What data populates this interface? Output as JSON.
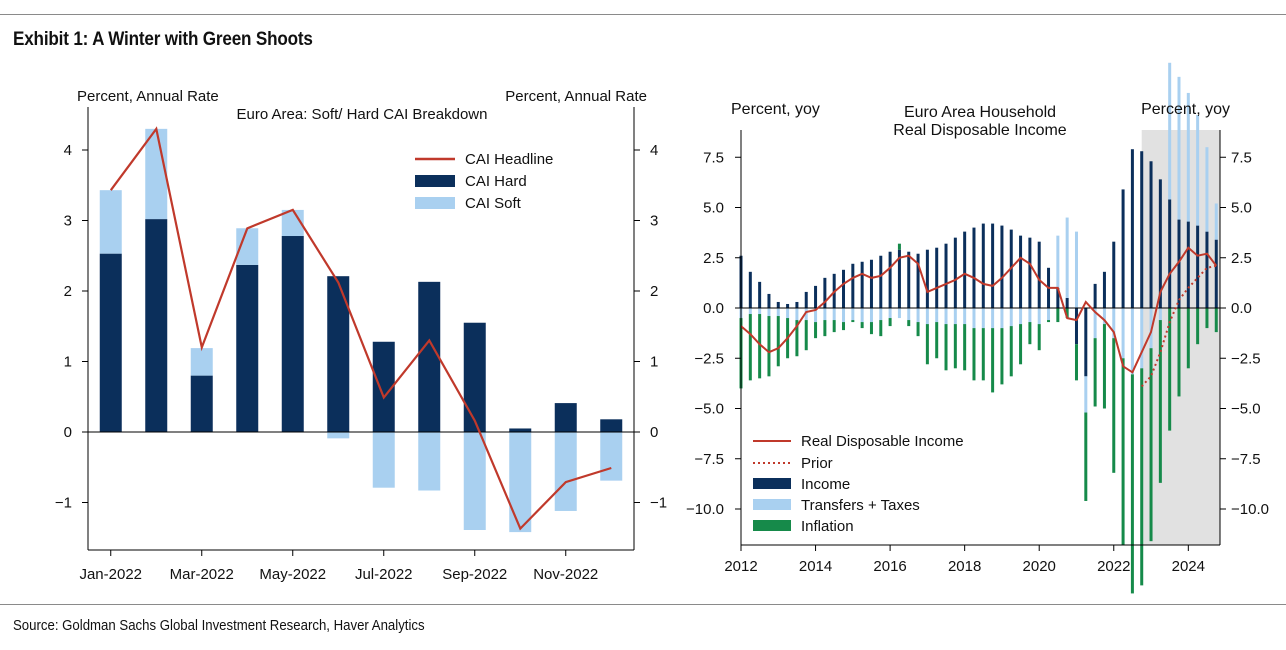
{
  "exhibit": {
    "title": "Exhibit 1: A Winter with Green Shoots",
    "source": "Source: Goldman Sachs Global Investment Research, Haver Analytics"
  },
  "colors": {
    "headline": "#c0392b",
    "hard": "#0b2f5b",
    "soft": "#a9d0f0",
    "inflation": "#168a4a",
    "shade": "#e1e1e1",
    "axis": "#000000"
  },
  "chart_data": [
    {
      "type": "bar",
      "title": "Euro Area: Soft/ Hard CAI Breakdown",
      "ylabel_left": "Percent, Annual Rate",
      "ylabel_right": "Percent, Annual Rate",
      "ylim": [
        -1.7,
        4.5
      ],
      "yticks": [
        -1,
        0,
        1,
        2,
        3,
        4
      ],
      "ytick_labels": [
        "−1",
        "0",
        "1",
        "2",
        "3",
        "4"
      ],
      "categories": [
        "Jan-2022",
        "Feb-2022",
        "Mar-2022",
        "Apr-2022",
        "May-2022",
        "Jun-2022",
        "Jul-2022",
        "Aug-2022",
        "Sep-2022",
        "Oct-2022",
        "Nov-2022",
        "Dec-2022"
      ],
      "xtick_labels": [
        "Jan-2022",
        "Mar-2022",
        "May-2022",
        "Jul-2022",
        "Sep-2022",
        "Nov-2022"
      ],
      "legend": [
        "CAI Headline",
        "CAI Hard",
        "CAI Soft"
      ],
      "series": [
        {
          "name": "CAI Hard",
          "values": [
            2.53,
            3.02,
            0.8,
            2.37,
            2.78,
            2.21,
            1.28,
            2.13,
            1.55,
            0.05,
            0.41,
            0.18
          ]
        },
        {
          "name": "CAI Soft",
          "values": [
            0.9,
            1.28,
            0.39,
            0.52,
            0.37,
            -0.09,
            -0.79,
            -0.83,
            -1.39,
            -1.42,
            -1.12,
            -0.69
          ]
        },
        {
          "name": "CAI Headline",
          "values": [
            3.43,
            4.3,
            1.2,
            2.89,
            3.15,
            2.12,
            0.49,
            1.3,
            0.16,
            -1.37,
            -0.71,
            -0.51
          ]
        }
      ]
    },
    {
      "type": "bar",
      "title_line1": "Euro Area Household",
      "title_line2": "Real Disposable Income",
      "ylabel_left": "Percent, yoy",
      "ylabel_right": "Percent, yoy",
      "ylim": [
        -11.8,
        8.9
      ],
      "yticks": [
        7.5,
        5.0,
        2.5,
        0.0,
        -2.5,
        -5.0,
        -7.5,
        -10.0
      ],
      "ytick_labels": [
        "7.5",
        "5.0",
        "2.5",
        "0.0",
        "−2.5",
        "−5.0",
        "−7.5",
        "−10.0"
      ],
      "xlim": [
        2012.0,
        2024.85
      ],
      "xticks": [
        2012,
        2014,
        2016,
        2018,
        2020,
        2022,
        2024
      ],
      "xtick_labels": [
        "2012",
        "2014",
        "2016",
        "2018",
        "2020",
        "2022",
        "2024"
      ],
      "shaded_region": [
        2022.75,
        2024.85
      ],
      "legend": [
        "Real Disposable Income",
        "Prior",
        "Income",
        "Transfers + Taxes",
        "Inflation"
      ],
      "x": [
        2012.0,
        2012.25,
        2012.5,
        2012.75,
        2013.0,
        2013.25,
        2013.5,
        2013.75,
        2014.0,
        2014.25,
        2014.5,
        2014.75,
        2015.0,
        2015.25,
        2015.5,
        2015.75,
        2016.0,
        2016.25,
        2016.5,
        2016.75,
        2017.0,
        2017.25,
        2017.5,
        2017.75,
        2018.0,
        2018.25,
        2018.5,
        2018.75,
        2019.0,
        2019.25,
        2019.5,
        2019.75,
        2020.0,
        2020.25,
        2020.5,
        2020.75,
        2021.0,
        2021.25,
        2021.5,
        2021.75,
        2022.0,
        2022.25,
        2022.5,
        2022.75,
        2023.0,
        2023.25,
        2023.5,
        2023.75,
        2024.0,
        2024.25,
        2024.5,
        2024.75
      ],
      "series": [
        {
          "name": "Income",
          "values": [
            2.6,
            1.8,
            1.3,
            0.7,
            0.3,
            0.2,
            0.3,
            0.8,
            1.1,
            1.5,
            1.7,
            1.9,
            2.2,
            2.3,
            2.4,
            2.6,
            2.8,
            2.9,
            2.8,
            2.7,
            2.9,
            3.0,
            3.2,
            3.5,
            3.8,
            4.0,
            4.2,
            4.2,
            4.1,
            3.9,
            3.6,
            3.5,
            3.3,
            2.0,
            1.0,
            0.5,
            -1.8,
            -3.4,
            1.2,
            1.8,
            3.3,
            5.9,
            7.9,
            7.8,
            7.3,
            6.4,
            5.4,
            4.4,
            4.3,
            4.1,
            3.8,
            3.4
          ]
        },
        {
          "name": "Transfers + Taxes",
          "values": [
            -0.5,
            -0.3,
            -0.3,
            -0.4,
            -0.4,
            -0.5,
            -0.6,
            -0.6,
            -0.7,
            -0.6,
            -0.6,
            -0.7,
            -0.6,
            -0.7,
            -0.7,
            -0.6,
            -0.5,
            -0.5,
            -0.6,
            -0.7,
            -0.8,
            -0.7,
            -0.8,
            -0.8,
            -0.8,
            -1.0,
            -1.0,
            -1.0,
            -1.0,
            -0.9,
            -0.8,
            -0.7,
            -0.8,
            -0.6,
            2.6,
            4.0,
            3.8,
            -1.8,
            -1.5,
            -0.8,
            -1.5,
            -2.5,
            -3.3,
            -3.0,
            -2.0,
            -0.6,
            6.8,
            7.1,
            6.4,
            5.5,
            4.2,
            1.8
          ]
        },
        {
          "name": "Inflation",
          "values": [
            -3.5,
            -3.3,
            -3.2,
            -3.0,
            -2.5,
            -2.0,
            -1.8,
            -1.5,
            -0.8,
            -0.8,
            -0.6,
            -0.4,
            -0.1,
            -0.3,
            -0.6,
            -0.8,
            -0.4,
            0.3,
            -0.3,
            -0.7,
            -2.0,
            -1.8,
            -2.3,
            -2.2,
            -2.3,
            -2.6,
            -2.6,
            -3.2,
            -2.8,
            -2.5,
            -2.0,
            -1.1,
            -1.3,
            -0.1,
            -0.7,
            -0.5,
            -1.8,
            -4.4,
            -3.4,
            -4.2,
            -6.7,
            -9.3,
            -10.9,
            -10.8,
            -9.6,
            -8.1,
            -6.1,
            -4.4,
            -3.0,
            -1.8,
            -1.0,
            -1.2
          ]
        },
        {
          "name": "Real Disposable Income",
          "values": [
            -0.9,
            -1.3,
            -1.8,
            -2.2,
            -2.0,
            -1.5,
            -0.9,
            -0.2,
            -0.1,
            0.3,
            0.8,
            1.2,
            1.5,
            1.7,
            1.5,
            1.6,
            2.0,
            2.5,
            2.6,
            2.2,
            0.8,
            1.0,
            1.2,
            1.4,
            1.7,
            1.5,
            1.2,
            1.1,
            1.5,
            2.0,
            2.5,
            2.2,
            1.4,
            1.0,
            1.0,
            -0.5,
            -0.6,
            0.3,
            -0.2,
            -0.6,
            -1.2,
            -2.9,
            -3.2,
            -2.2,
            -1.2,
            0.8,
            1.7,
            2.3,
            3.0,
            2.6,
            2.7,
            2.1
          ]
        },
        {
          "name": "Prior",
          "values": [
            null,
            null,
            null,
            null,
            null,
            null,
            null,
            null,
            null,
            null,
            null,
            null,
            null,
            null,
            null,
            null,
            null,
            null,
            null,
            null,
            null,
            null,
            null,
            null,
            null,
            null,
            null,
            null,
            null,
            null,
            null,
            null,
            null,
            null,
            null,
            null,
            null,
            null,
            null,
            null,
            null,
            null,
            null,
            -3.9,
            -3.4,
            -2.2,
            -0.7,
            0.4,
            1.0,
            1.5,
            2.0,
            2.1
          ]
        }
      ]
    }
  ]
}
